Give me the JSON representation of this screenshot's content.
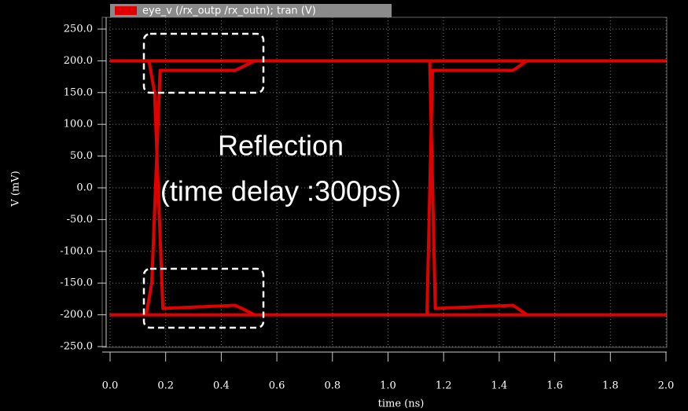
{
  "chart_data": {
    "type": "line",
    "series": [
      {
        "name": "eye_v (/rx_outp /rx_outn); tran (V)",
        "color": "#e00000",
        "x": [
          0,
          2,
          null,
          0,
          2,
          null,
          0.14,
          0.16,
          0.19,
          0.45,
          0.52,
          null,
          0.13,
          0.15,
          0.18,
          0.45,
          0.52,
          null,
          1.15,
          1.17,
          1.45,
          1.5,
          null,
          1.14,
          1.16,
          1.45,
          1.5
        ],
        "values": [
          200,
          200,
          null,
          -200,
          -200,
          null,
          200,
          150,
          -190,
          -185,
          -200,
          null,
          -200,
          -150,
          185,
          185,
          200,
          null,
          200,
          -190,
          -185,
          -200,
          null,
          -200,
          185,
          185,
          200
        ]
      }
    ],
    "xlim": [
      0,
      2
    ],
    "ylim": [
      -250,
      250
    ],
    "xticks": [
      {
        "value": 0,
        "label": "0.0"
      },
      0.2,
      0.4,
      0.6,
      0.8,
      {
        "value": 1,
        "label": "1.0"
      },
      1.2,
      1.4,
      1.6,
      1.8,
      {
        "value": 2,
        "label": "2.0"
      }
    ],
    "yticks": [
      {
        "value": 250,
        "label": "250.0"
      },
      {
        "value": 200,
        "label": "200.0"
      },
      {
        "value": 150,
        "label": "150.0"
      },
      {
        "value": 100,
        "label": "100.0"
      },
      {
        "value": 50,
        "label": "50.0"
      },
      {
        "value": 0,
        "label": "0.0"
      },
      {
        "value": -50,
        "label": "-50.0"
      },
      {
        "value": -100,
        "label": "-100.0"
      },
      {
        "value": -150,
        "label": "-150.0"
      },
      {
        "value": -200,
        "label": "-200.0"
      },
      {
        "value": -250,
        "label": "-250.0"
      }
    ],
    "xlabel": "time (ns)",
    "ylabel": "V (mV)",
    "annotations": [
      "Reflection",
      "(time delay :300ps)"
    ],
    "grid": true
  }
}
